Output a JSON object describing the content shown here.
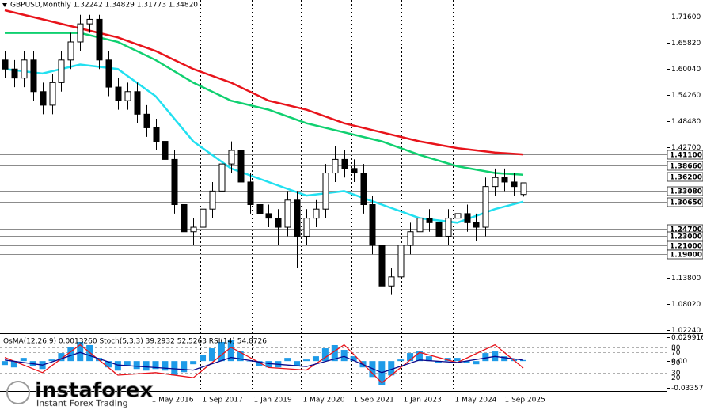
{
  "chart_data": [
    {
      "type": "candlestick",
      "title": "GBPUSD,Monthly  1.32242 1.34829 1.31773 1.34820",
      "xlim": [
        -0.5,
        70.2
      ],
      "ylim": [
        1.0171,
        1.7528
      ],
      "grid": true,
      "open": [
        1.62,
        1.6,
        1.58,
        1.62,
        1.55,
        1.52,
        1.57,
        1.62,
        1.66,
        1.7,
        1.71,
        1.62,
        1.56,
        1.53,
        1.55,
        1.5,
        1.47,
        1.44,
        1.4,
        1.3,
        1.24,
        1.25,
        1.29,
        1.33,
        1.39,
        1.42,
        1.35,
        1.3,
        1.28,
        1.27,
        1.25,
        1.31,
        1.23,
        1.27,
        1.29,
        1.37,
        1.4,
        1.38,
        1.37,
        1.3,
        1.21,
        1.12,
        1.14,
        1.21,
        1.24,
        1.27,
        1.26,
        1.23,
        1.27,
        1.28,
        1.26,
        1.25,
        1.34,
        1.36,
        1.35,
        1.32242
      ],
      "high": [
        1.64,
        1.62,
        1.64,
        1.64,
        1.57,
        1.59,
        1.64,
        1.68,
        1.72,
        1.72,
        1.72,
        1.64,
        1.58,
        1.57,
        1.57,
        1.52,
        1.49,
        1.46,
        1.42,
        1.32,
        1.27,
        1.31,
        1.35,
        1.41,
        1.44,
        1.44,
        1.37,
        1.32,
        1.3,
        1.29,
        1.33,
        1.33,
        1.29,
        1.31,
        1.39,
        1.43,
        1.42,
        1.4,
        1.39,
        1.32,
        1.23,
        1.16,
        1.23,
        1.26,
        1.29,
        1.29,
        1.28,
        1.29,
        1.3,
        1.3,
        1.28,
        1.36,
        1.38,
        1.38,
        1.37,
        1.34829
      ],
      "low": [
        1.58,
        1.56,
        1.56,
        1.53,
        1.5,
        1.5,
        1.55,
        1.6,
        1.64,
        1.68,
        1.6,
        1.54,
        1.51,
        1.51,
        1.48,
        1.45,
        1.42,
        1.38,
        1.28,
        1.2,
        1.21,
        1.23,
        1.27,
        1.31,
        1.37,
        1.33,
        1.28,
        1.26,
        1.25,
        1.21,
        1.23,
        1.16,
        1.21,
        1.25,
        1.27,
        1.35,
        1.36,
        1.35,
        1.28,
        1.19,
        1.07,
        1.1,
        1.12,
        1.19,
        1.22,
        1.24,
        1.21,
        1.21,
        1.25,
        1.24,
        1.22,
        1.23,
        1.32,
        1.33,
        1.32,
        1.31773
      ],
      "close": [
        1.6,
        1.58,
        1.62,
        1.55,
        1.52,
        1.57,
        1.62,
        1.66,
        1.7,
        1.71,
        1.62,
        1.56,
        1.53,
        1.55,
        1.5,
        1.47,
        1.44,
        1.4,
        1.3,
        1.24,
        1.25,
        1.29,
        1.33,
        1.39,
        1.42,
        1.35,
        1.3,
        1.28,
        1.27,
        1.25,
        1.31,
        1.23,
        1.27,
        1.29,
        1.37,
        1.4,
        1.38,
        1.37,
        1.3,
        1.21,
        1.12,
        1.14,
        1.21,
        1.24,
        1.27,
        1.26,
        1.23,
        1.27,
        1.28,
        1.26,
        1.25,
        1.34,
        1.36,
        1.35,
        1.34,
        1.3482
      ],
      "series": [
        {
          "color": "#e8141b",
          "x": [
            0,
            4,
            8,
            12,
            16,
            20,
            24,
            28,
            32,
            36,
            40,
            44,
            48,
            52,
            55
          ],
          "values": [
            1.73,
            1.71,
            1.69,
            1.67,
            1.64,
            1.6,
            1.57,
            1.53,
            1.51,
            1.48,
            1.46,
            1.44,
            1.425,
            1.415,
            1.411
          ]
        },
        {
          "color": "#10d070",
          "x": [
            0,
            4,
            8,
            12,
            16,
            20,
            24,
            28,
            32,
            36,
            40,
            44,
            48,
            52,
            55
          ],
          "values": [
            1.68,
            1.68,
            1.68,
            1.66,
            1.62,
            1.57,
            1.53,
            1.51,
            1.48,
            1.46,
            1.44,
            1.41,
            1.385,
            1.37,
            1.366
          ]
        },
        {
          "color": "#22e0f0",
          "x": [
            0,
            4,
            8,
            12,
            16,
            20,
            24,
            28,
            32,
            36,
            40,
            44,
            48,
            52,
            55
          ],
          "values": [
            1.6,
            1.59,
            1.61,
            1.6,
            1.54,
            1.44,
            1.38,
            1.35,
            1.32,
            1.33,
            1.3,
            1.27,
            1.26,
            1.29,
            1.3065
          ]
        }
      ],
      "yticks": [
        {
          "value": 1.716,
          "label": "1.71600"
        },
        {
          "value": 1.6582,
          "label": "1.65820"
        },
        {
          "value": 1.6004,
          "label": "1.60040"
        },
        {
          "value": 1.5426,
          "label": "1.54260"
        },
        {
          "value": 1.4848,
          "label": "1.48480"
        },
        {
          "value": 1.427,
          "label": "1.42700"
        },
        {
          "value": 1.138,
          "label": "1.13800"
        },
        {
          "value": 1.0802,
          "label": "1.08020"
        },
        {
          "value": 1.0224,
          "label": "1.02240"
        }
      ],
      "levels": [
        {
          "value": 1.411,
          "label": "1.41100"
        },
        {
          "value": 1.3866,
          "label": "1.38660"
        },
        {
          "value": 1.362,
          "label": "1.36200"
        },
        {
          "value": 1.3308,
          "label": "1.33080"
        },
        {
          "value": 1.3065,
          "label": "1.30650"
        },
        {
          "value": 1.247,
          "label": "1.24700"
        },
        {
          "value": 1.23,
          "label": "1.23000"
        },
        {
          "value": 1.21,
          "label": "1.21000"
        },
        {
          "value": 1.19,
          "label": "1.19000"
        }
      ],
      "xticks": [
        {
          "value": 15.34,
          "label": "1 May 2016"
        },
        {
          "value": 20.76,
          "label": "1 Sep 2017"
        },
        {
          "value": 26.18,
          "label": "1 Jan 2019"
        },
        {
          "value": 31.43,
          "label": "1 May 2020"
        },
        {
          "value": 36.77,
          "label": "1 Sep 2021"
        },
        {
          "value": 42.1,
          "label": "1 Jan 2023"
        },
        {
          "value": 47.52,
          "label": "1 May 2024"
        },
        {
          "value": 52.86,
          "label": "1 Sep 2025"
        }
      ]
    },
    {
      "type": "osma",
      "title": "OsMA(12,26,9) 0.0013260  Stoch(5,3,3) 39.2932 52.5263  RSI(14) 54.8726",
      "color": "#1e9be8",
      "values": [
        -0.005,
        -0.008,
        0.004,
        -0.006,
        -0.01,
        0.002,
        0.01,
        0.018,
        0.024,
        0.02,
        0.004,
        -0.008,
        -0.012,
        -0.006,
        -0.01,
        -0.012,
        -0.01,
        -0.012,
        -0.018,
        -0.014,
        -0.004,
        0.008,
        0.016,
        0.024,
        0.026,
        0.012,
        0.0,
        -0.006,
        -0.008,
        -0.008,
        0.004,
        -0.006,
        0.002,
        0.006,
        0.016,
        0.02,
        0.014,
        0.006,
        -0.008,
        -0.02,
        -0.03,
        -0.018,
        0.002,
        0.01,
        0.012,
        0.006,
        -0.002,
        0.004,
        0.004,
        -0.002,
        -0.004,
        0.01,
        0.012,
        0.006,
        0.002,
        0.001326
      ],
      "ylim": [
        -0.033574,
        0.029916
      ],
      "yticks": [
        0.029916,
        {
          "value": 0,
          "label": "0.00"
        },
        -0.033574
      ],
      "y2lim": [
        0,
        100
      ],
      "y2ticks": [
        20,
        30,
        50,
        70,
        80
      ],
      "series": [
        {
          "color": "#e8141b",
          "axis": "y2",
          "x": [
            0,
            4,
            8,
            12,
            16,
            20,
            24,
            28,
            32,
            36,
            40,
            44,
            48,
            52,
            55
          ],
          "values": [
            60,
            30,
            85,
            25,
            30,
            20,
            80,
            40,
            35,
            85,
            10,
            70,
            50,
            85,
            39.2932
          ]
        },
        {
          "color": "#0a0a8c",
          "axis": "y2",
          "x": [
            0,
            4,
            8,
            12,
            16,
            20,
            24,
            28,
            32,
            36,
            40,
            44,
            48,
            52,
            55
          ],
          "values": [
            55,
            45,
            70,
            45,
            40,
            35,
            60,
            48,
            42,
            62,
            30,
            55,
            50,
            62,
            54.8726
          ]
        }
      ]
    }
  ],
  "watermark": {
    "brand": "instaforex",
    "tagline": "Instant Forex Trading"
  }
}
